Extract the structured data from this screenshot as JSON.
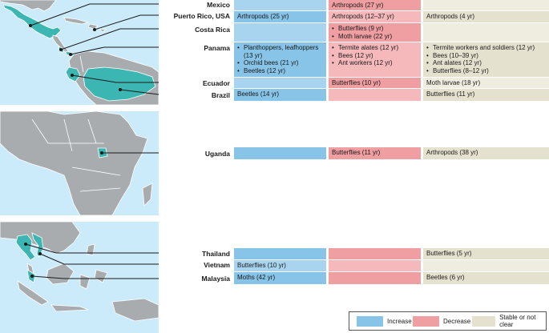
{
  "countries": {
    "mexico": "Mexico",
    "puerto_rico": "Puerto Rico, USA",
    "costa_rica": "Costa Rica",
    "panama": "Panama",
    "ecuador": "Ecuador",
    "brazil": "Brazil",
    "uganda": "Uganda",
    "thailand": "Thailand",
    "vietnam": "Vietnam",
    "malaysia": "Malaysia"
  },
  "cells": {
    "mexico": {
      "increase": [],
      "decrease": [
        "Arthropods (27 yr)"
      ],
      "stable": []
    },
    "puerto_rico": {
      "increase": [
        "Arthropods (25 yr)"
      ],
      "decrease": [
        "Arthropods (12–37 yr)"
      ],
      "stable": [
        "Arthropods (4 yr)"
      ]
    },
    "costa_rica": {
      "increase": [],
      "decrease": [
        "Butterflies (9 yr)",
        "Moth larvae (22 yr)"
      ],
      "stable": []
    },
    "panama": {
      "increase": [
        "Planthoppers, leafhoppers (13 yr)",
        "Orchid bees (21 yr)",
        "Beetles (12 yr)"
      ],
      "decrease": [
        "Termite alates (12 yr)",
        "Bees (12 yr)",
        "Ant workers (12 yr)"
      ],
      "stable": [
        "Termite workers and soldiers (12 yr)",
        "Bees (10–39 yr)",
        "Ant alates (12 yr)",
        "Butterflies (8–12 yr)"
      ]
    },
    "ecuador": {
      "increase": [],
      "decrease": [
        "Butterflies (10 yr)"
      ],
      "stable": [
        "Moth larvae (18 yr)"
      ]
    },
    "brazil": {
      "increase": [
        "Beetles (14 yr)"
      ],
      "decrease": [],
      "stable": [
        "Butterflies (11 yr)"
      ]
    },
    "uganda": {
      "increase": [],
      "decrease": [
        "Butterflies (11 yr)"
      ],
      "stable": [
        "Arthropods (38 yr)"
      ]
    },
    "thailand": {
      "increase": [],
      "decrease": [],
      "stable": [
        "Butterflies (5 yr)"
      ]
    },
    "vietnam": {
      "increase": [
        "Butterflies (10 yr)"
      ],
      "decrease": [],
      "stable": []
    },
    "malaysia": {
      "increase": [
        "Moths (42 yr)"
      ],
      "decrease": [],
      "stable": [
        "Beetles (6 yr)"
      ]
    }
  },
  "legend": {
    "increase": "Increase",
    "decrease": "Decrease",
    "stable": "Stable or not clear"
  },
  "colors": {
    "increase": "#87c4e8",
    "decrease": "#ef9ea2",
    "stable": "#e5e1cf",
    "highlighted_country": "#3cb6b2",
    "land": "#a9acae",
    "water": "#ccebfa"
  }
}
